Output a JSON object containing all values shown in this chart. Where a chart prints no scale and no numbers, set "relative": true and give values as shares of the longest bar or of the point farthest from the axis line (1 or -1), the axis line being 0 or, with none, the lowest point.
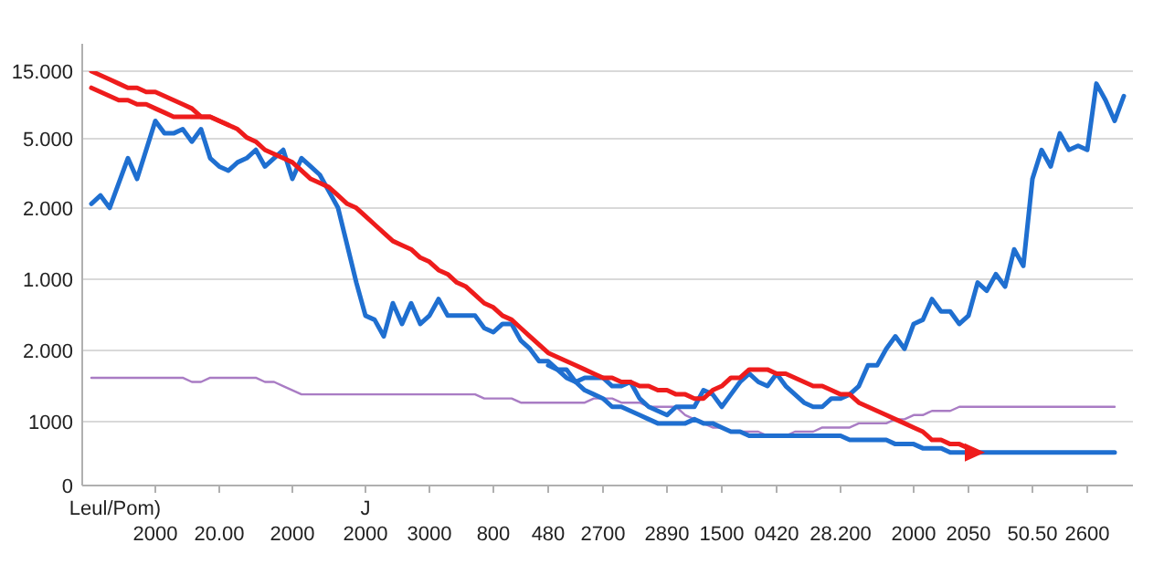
{
  "chart_data": {
    "type": "line",
    "relative": true,
    "grid": "y",
    "marker": "none",
    "line_style": "solid",
    "categories": [
      null,
      null,
      null,
      null,
      null,
      null,
      null,
      null,
      "2000",
      null,
      null,
      null,
      null,
      null,
      null,
      "20.00",
      null,
      null,
      null,
      null,
      null,
      null,
      null,
      "2000",
      null,
      null,
      null,
      null,
      null,
      null,
      null,
      "2000",
      null,
      null,
      null,
      null,
      null,
      null,
      "3000",
      null,
      null,
      null,
      null,
      null,
      null,
      "800",
      null,
      null,
      null,
      null,
      null,
      "480",
      null,
      null,
      null,
      null,
      null,
      "2700",
      null,
      null,
      null,
      null,
      null,
      null,
      "2890",
      null,
      null,
      null,
      null,
      null,
      "1500",
      null,
      null,
      null,
      null,
      null,
      "0420",
      null,
      null,
      null,
      null,
      null,
      null,
      "28.200",
      null,
      null,
      null,
      null,
      null,
      null,
      null,
      "2000",
      null,
      null,
      null,
      null,
      null,
      "2050",
      null,
      null,
      null,
      null,
      null,
      null,
      "50.50",
      null,
      null,
      null,
      null,
      null,
      "2600",
      null,
      null,
      null,
      null,
      null
    ],
    "annotations": [
      "Leul/Pom)",
      "J",
      "15.000",
      "5.000",
      "2.000",
      "1.000",
      "2.000",
      "1000",
      "0"
    ],
    "series": [
      {
        "color": "#a97cc4",
        "values": [
          null,
          0.26,
          0.26,
          0.26,
          0.26,
          0.26,
          0.26,
          0.26,
          0.26,
          0.26,
          0.26,
          0.26,
          0.25,
          0.25,
          0.26,
          0.26,
          0.26,
          0.26,
          0.26,
          0.26,
          0.25,
          0.25,
          0.24,
          0.23,
          0.22,
          0.22,
          0.22,
          0.22,
          0.22,
          0.22,
          0.22,
          0.22,
          0.22,
          0.22,
          0.22,
          0.22,
          0.22,
          0.22,
          0.22,
          0.22,
          0.22,
          0.22,
          0.22,
          0.22,
          0.21,
          0.21,
          0.21,
          0.21,
          0.2,
          0.2,
          0.2,
          0.2,
          0.2,
          0.2,
          0.2,
          0.2,
          0.21,
          0.21,
          0.21,
          0.2,
          0.2,
          0.2,
          0.19,
          0.19,
          0.19,
          0.19,
          0.17,
          0.16,
          0.15,
          0.14,
          0.14,
          0.13,
          0.13,
          0.13,
          0.13,
          0.12,
          0.12,
          0.12,
          0.13,
          0.13,
          0.13,
          0.14,
          0.14,
          0.14,
          0.14,
          0.15,
          0.15,
          0.15,
          0.15,
          0.16,
          0.16,
          0.17,
          0.17,
          0.18,
          0.18,
          0.18,
          0.19,
          0.19,
          0.19,
          0.19,
          0.19,
          0.19,
          0.19,
          0.19,
          0.19,
          0.19,
          0.19,
          0.19,
          0.19,
          0.19,
          0.19,
          0.19,
          0.19,
          0.19,
          null,
          null
        ]
      },
      {
        "color": "#1f6fd0",
        "values": [
          null,
          null,
          null,
          null,
          null,
          null,
          null,
          null,
          null,
          null,
          null,
          null,
          null,
          null,
          null,
          null,
          null,
          null,
          null,
          null,
          null,
          null,
          null,
          null,
          null,
          null,
          null,
          null,
          null,
          null,
          null,
          null,
          null,
          null,
          null,
          null,
          null,
          null,
          null,
          null,
          null,
          null,
          null,
          null,
          null,
          null,
          null,
          null,
          null,
          null,
          null,
          0.29,
          0.28,
          0.26,
          0.25,
          0.23,
          0.22,
          0.21,
          0.19,
          0.19,
          0.18,
          0.17,
          0.16,
          0.15,
          0.15,
          0.15,
          0.15,
          0.16,
          0.15,
          0.15,
          0.14,
          0.13,
          0.13,
          0.12,
          0.12,
          0.12,
          0.12,
          0.12,
          0.12,
          0.12,
          0.12,
          0.12,
          0.12,
          0.12,
          0.11,
          0.11,
          0.11,
          0.11,
          0.11,
          0.1,
          0.1,
          0.1,
          0.09,
          0.09,
          0.09,
          0.08,
          0.08,
          0.08,
          0.08,
          0.08,
          0.08,
          0.08,
          0.08,
          0.08,
          0.08,
          0.08,
          0.08,
          0.08,
          0.08,
          0.08,
          0.08,
          0.08,
          0.08,
          0.08,
          null,
          null
        ]
      },
      {
        "color": "#1f6fd0",
        "values": [
          null,
          0.68,
          0.7,
          0.67,
          0.73,
          0.79,
          0.74,
          0.81,
          0.88,
          0.85,
          0.85,
          0.86,
          0.83,
          0.86,
          0.79,
          0.77,
          0.76,
          0.78,
          0.79,
          0.81,
          0.77,
          0.79,
          0.81,
          0.74,
          0.79,
          0.77,
          0.75,
          0.71,
          0.67,
          0.58,
          0.49,
          0.41,
          0.4,
          0.36,
          0.44,
          0.39,
          0.44,
          0.39,
          0.41,
          0.45,
          0.41,
          0.41,
          0.41,
          0.41,
          0.38,
          0.37,
          0.39,
          0.39,
          0.35,
          0.33,
          0.3,
          0.3,
          0.28,
          0.28,
          0.25,
          0.26,
          0.26,
          0.26,
          0.24,
          0.24,
          0.25,
          0.21,
          0.19,
          0.18,
          0.17,
          0.19,
          0.19,
          0.19,
          0.23,
          0.22,
          0.19,
          0.22,
          0.25,
          0.27,
          0.25,
          0.24,
          0.27,
          0.24,
          0.22,
          0.2,
          0.19,
          0.19,
          0.21,
          0.21,
          0.22,
          0.24,
          0.29,
          0.29,
          0.33,
          0.36,
          0.33,
          0.39,
          0.4,
          0.45,
          0.42,
          0.42,
          0.39,
          0.41,
          0.49,
          0.47,
          0.51,
          0.48,
          0.57,
          0.53,
          0.74,
          0.81,
          0.77,
          0.85,
          0.81,
          0.82,
          0.81,
          0.97,
          0.93,
          0.88,
          0.94,
          null
        ]
      },
      {
        "color": "#ee1c1c",
        "values": [
          null,
          0.96,
          0.95,
          0.94,
          0.93,
          0.93,
          0.92,
          0.92,
          0.91,
          0.9,
          0.89,
          0.89,
          0.89,
          0.89,
          0.89,
          0.88,
          0.87,
          null,
          null,
          null,
          null,
          null,
          null,
          null,
          null,
          null,
          null,
          null,
          null,
          null,
          null,
          null,
          null,
          null,
          null,
          null,
          null,
          null,
          null,
          null,
          null,
          null,
          null,
          null,
          null,
          null,
          null,
          null,
          null,
          null,
          null,
          null,
          null,
          null,
          null,
          null,
          null,
          null,
          null,
          null,
          null,
          null,
          null,
          null,
          null,
          null,
          null,
          null,
          null,
          null,
          null,
          null,
          null,
          null,
          null,
          null,
          null,
          null,
          null,
          null,
          null,
          null,
          null,
          null,
          null,
          null,
          null,
          null,
          null,
          null,
          null,
          null,
          null,
          null,
          null,
          null,
          null,
          null,
          null,
          null,
          null,
          null,
          null,
          null,
          null,
          null,
          null,
          null,
          null,
          null,
          null,
          null,
          null,
          null,
          null,
          null
        ]
      },
      {
        "color": "#ee1c1c",
        "values": [
          null,
          1.0,
          0.99,
          0.98,
          0.97,
          0.96,
          0.96,
          0.95,
          0.95,
          0.94,
          0.93,
          0.92,
          0.91,
          0.89,
          0.89,
          0.88,
          0.87,
          0.86,
          0.84,
          0.83,
          0.81,
          0.8,
          0.79,
          0.78,
          0.76,
          0.74,
          0.73,
          0.72,
          0.7,
          0.68,
          0.67,
          0.65,
          0.63,
          0.61,
          0.59,
          0.58,
          0.57,
          0.55,
          0.54,
          0.52,
          0.51,
          0.49,
          0.48,
          0.46,
          0.44,
          0.43,
          0.41,
          0.4,
          0.38,
          0.36,
          0.34,
          0.32,
          0.31,
          0.3,
          0.29,
          0.28,
          0.27,
          0.26,
          0.26,
          0.25,
          0.25,
          0.24,
          0.24,
          0.23,
          0.23,
          0.22,
          0.22,
          0.21,
          0.21,
          0.23,
          0.24,
          0.26,
          0.26,
          0.28,
          0.28,
          0.28,
          0.27,
          0.27,
          0.26,
          0.25,
          0.24,
          0.24,
          0.23,
          0.22,
          0.22,
          0.2,
          0.19,
          0.18,
          0.17,
          0.16,
          0.15,
          0.14,
          0.13,
          0.11,
          0.11,
          0.1,
          0.1,
          0.09,
          0.08,
          null,
          null,
          null,
          null,
          null,
          null,
          null,
          null,
          null,
          null,
          null,
          null,
          null,
          null,
          null,
          null,
          null
        ]
      }
    ]
  }
}
